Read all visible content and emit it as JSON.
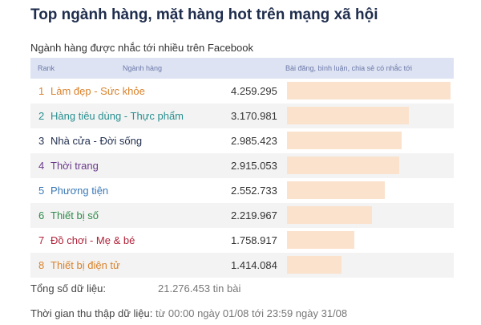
{
  "header": {
    "title": "Top ngành hàng, mặt hàng hot trên mạng xã hội",
    "subtitle": "Ngành hàng được nhắc tới nhiều trên Facebook"
  },
  "table": {
    "col_rank": "Rank",
    "col_category": "Ngành hàng",
    "col_metric": "Bài đăng, bình luận, chia sẻ có nhắc tới"
  },
  "footer": {
    "total_label": "Tổng số dữ liệu:",
    "total_value": "21.276.453 tin bài",
    "period_label": "Thời gian thu thập dữ liệu:",
    "period_value": "từ 00:00 ngày 01/08 tới 23:59 ngày 31/08"
  },
  "colors": {
    "bar": "#fbe2cd",
    "header_bg": "#dde3f3",
    "title": "#1f2d4d"
  },
  "chart_data": {
    "type": "bar",
    "orientation": "horizontal",
    "max_value": 4259295,
    "rows": [
      {
        "rank": "1",
        "category": "Làm đẹp - Sức khỏe",
        "value": 4259295,
        "value_label": "4.259.295",
        "color": "#d9822b"
      },
      {
        "rank": "2",
        "category": "Hàng tiêu dùng - Thực phẩm",
        "value": 3170981,
        "value_label": "3.170.981",
        "color": "#2a8f8f"
      },
      {
        "rank": "3",
        "category": "Nhà cửa - Đời sống",
        "value": 2985423,
        "value_label": "2.985.423",
        "color": "#1f2d4d"
      },
      {
        "rank": "4",
        "category": "Thời trang",
        "value": 2915053,
        "value_label": "2.915.053",
        "color": "#6a3a8a"
      },
      {
        "rank": "5",
        "category": "Phương tiện",
        "value": 2552733,
        "value_label": "2.552.733",
        "color": "#3a78b5"
      },
      {
        "rank": "6",
        "category": "Thiết bị số",
        "value": 2219967,
        "value_label": "2.219.967",
        "color": "#2e8b4a"
      },
      {
        "rank": "7",
        "category": "Đồ chơi - Mẹ & bé",
        "value": 1758917,
        "value_label": "1.758.917",
        "color": "#b0233a"
      },
      {
        "rank": "8",
        "category": "Thiết bị điện tử",
        "value": 1414084,
        "value_label": "1.414.084",
        "color": "#d9822b"
      }
    ]
  }
}
